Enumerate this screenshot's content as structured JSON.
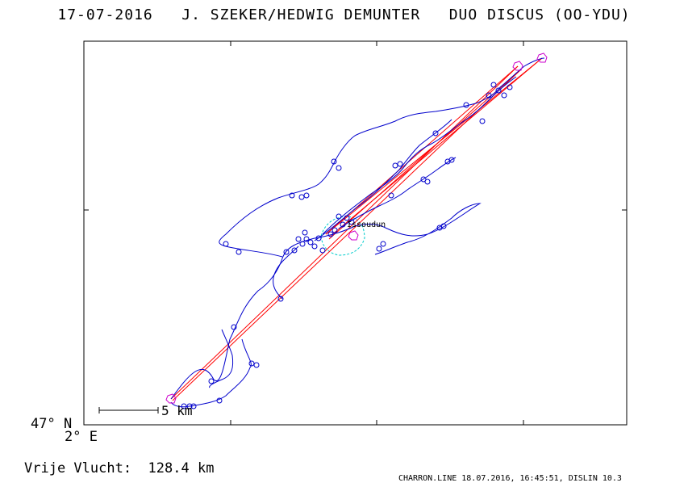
{
  "header": {
    "date": "17-07-2016",
    "pilots": "J. SZEKER/HEDWIG DEMUNTER",
    "aircraft": "DUO DISCUS (OO-YDU)"
  },
  "map": {
    "town": "Issoudun",
    "lat_label": "47° N",
    "lon_label": "2° E",
    "scale_label": "5 km",
    "track_color": "#0000cc",
    "task_color": "#ff0000",
    "turnpoint_color": "#cc00cc",
    "sector_color": "#00cccc"
  },
  "summary": {
    "distance_label": "Vrije Vlucht:",
    "distance_value": "128.4 km"
  },
  "footer": {
    "text": "CHARRON.LINE 18.07.2016, 16:45:51, DISLIN 10.3"
  }
}
